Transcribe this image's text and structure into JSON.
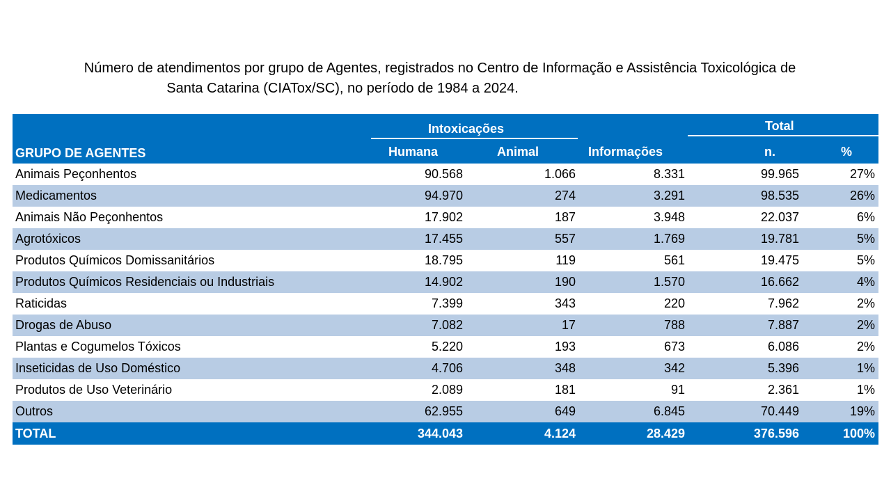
{
  "title": {
    "line1": "Número de atendimentos por grupo de Agentes, registrados no Centro de Informação e Assistência Toxicológica de",
    "line2": "Santa Catarina (CIATox/SC), no período de 1984 a 2024."
  },
  "header": {
    "group": "GRUPO DE AGENTES",
    "intox": "Intoxicações",
    "humana": "Humana",
    "animal": "Animal",
    "info": "Informações",
    "total": "Total",
    "n": "n.",
    "pct": "%"
  },
  "colors": {
    "header_bg": "#0070c0",
    "alt_row": "#b8cce4"
  },
  "rows": [
    {
      "agent": "Animais Peçonhentos",
      "humana": "90.568",
      "animal": "1.066",
      "info": "8.331",
      "n": "99.965",
      "pct": "27%"
    },
    {
      "agent": "Medicamentos",
      "humana": "94.970",
      "animal": "274",
      "info": "3.291",
      "n": "98.535",
      "pct": "26%"
    },
    {
      "agent": "Animais Não Peçonhentos",
      "humana": "17.902",
      "animal": "187",
      "info": "3.948",
      "n": "22.037",
      "pct": "6%"
    },
    {
      "agent": "Agrotóxicos",
      "humana": "17.455",
      "animal": "557",
      "info": "1.769",
      "n": "19.781",
      "pct": "5%"
    },
    {
      "agent": "Produtos Químicos Domissanitários",
      "humana": "18.795",
      "animal": "119",
      "info": "561",
      "n": "19.475",
      "pct": "5%"
    },
    {
      "agent": "Produtos Químicos Residenciais ou Industriais",
      "humana": "14.902",
      "animal": "190",
      "info": "1.570",
      "n": "16.662",
      "pct": "4%"
    },
    {
      "agent": "Raticidas",
      "humana": "7.399",
      "animal": "343",
      "info": "220",
      "n": "7.962",
      "pct": "2%"
    },
    {
      "agent": "Drogas de Abuso",
      "humana": "7.082",
      "animal": "17",
      "info": "788",
      "n": "7.887",
      "pct": "2%"
    },
    {
      "agent": "Plantas e Cogumelos Tóxicos",
      "humana": "5.220",
      "animal": "193",
      "info": "673",
      "n": "6.086",
      "pct": "2%"
    },
    {
      "agent": "Inseticidas de Uso Doméstico",
      "humana": "4.706",
      "animal": "348",
      "info": "342",
      "n": "5.396",
      "pct": "1%"
    },
    {
      "agent": "Produtos de Uso Veterinário",
      "humana": "2.089",
      "animal": "181",
      "info": "91",
      "n": "2.361",
      "pct": "1%"
    },
    {
      "agent": "Outros",
      "humana": "62.955",
      "animal": "649",
      "info": "6.845",
      "n": "70.449",
      "pct": "19%"
    }
  ],
  "total": {
    "agent": "TOTAL",
    "humana": "344.043",
    "animal": "4.124",
    "info": "28.429",
    "n": "376.596",
    "pct": "100%"
  }
}
